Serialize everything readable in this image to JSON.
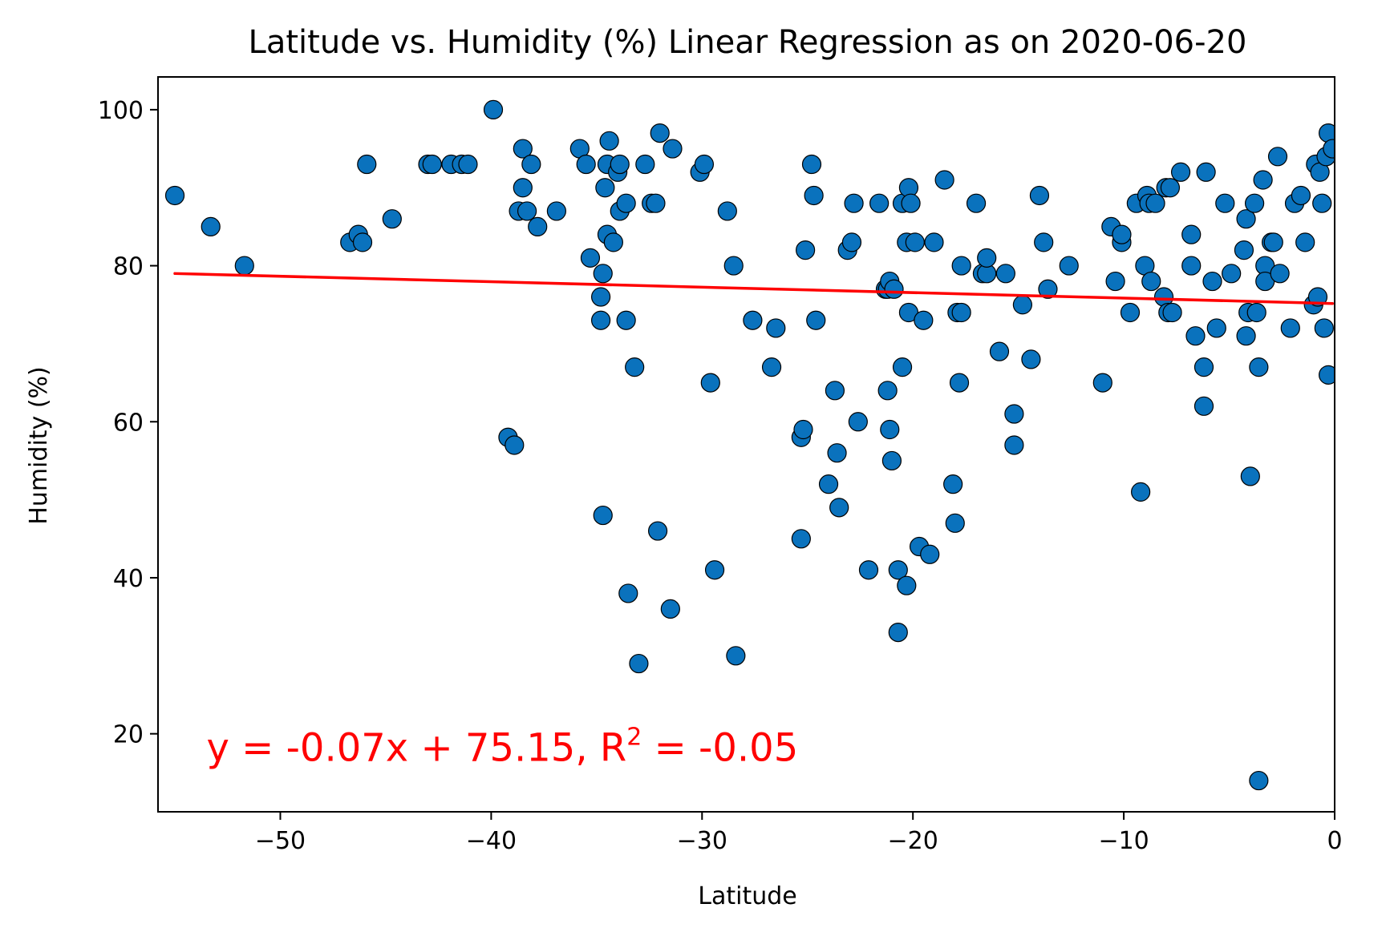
{
  "chart_data": {
    "type": "scatter",
    "title": "Latitude vs. Humidity (%) Linear Regression as on 2020-06-20",
    "xlabel": "Latitude",
    "ylabel": "Humidity (%)",
    "xlim": [
      -55.8,
      0
    ],
    "ylim": [
      10,
      104.2
    ],
    "xticks": [
      -50,
      -40,
      -30,
      -20,
      -10,
      0
    ],
    "xtick_labels": [
      "−50",
      "−40",
      "−30",
      "−20",
      "−10",
      "0"
    ],
    "yticks": [
      20,
      40,
      60,
      80,
      100
    ],
    "ytick_labels": [
      "20",
      "40",
      "60",
      "80",
      "100"
    ],
    "grid": false,
    "point_color": "#0a72bd",
    "point_edge_color": "#000000",
    "line_color": "#ff0000",
    "regression": {
      "slope": -0.07,
      "intercept": 75.15,
      "x_range": [
        -55,
        -0.1
      ]
    },
    "annotation": {
      "text_main": "y = -0.07x + 75.15, R",
      "superscript": "2",
      "text_end": " = -0.05",
      "color": "#ff0000",
      "x": -53.5,
      "y": 16.5
    },
    "points": [
      [
        -55.0,
        89
      ],
      [
        -53.3,
        85
      ],
      [
        -51.7,
        80
      ],
      [
        -46.7,
        83
      ],
      [
        -46.3,
        84
      ],
      [
        -46.1,
        83
      ],
      [
        -45.9,
        93
      ],
      [
        -44.7,
        86
      ],
      [
        -43.0,
        93
      ],
      [
        -42.8,
        93
      ],
      [
        -41.9,
        93
      ],
      [
        -41.4,
        93
      ],
      [
        -41.1,
        93
      ],
      [
        -39.9,
        100
      ],
      [
        -39.2,
        58
      ],
      [
        -38.9,
        57
      ],
      [
        -38.7,
        87
      ],
      [
        -38.5,
        95
      ],
      [
        -38.5,
        90
      ],
      [
        -38.3,
        87
      ],
      [
        -38.1,
        93
      ],
      [
        -37.8,
        85
      ],
      [
        -36.9,
        87
      ],
      [
        -35.8,
        95
      ],
      [
        -35.5,
        93
      ],
      [
        -35.3,
        81
      ],
      [
        -34.8,
        76
      ],
      [
        -34.8,
        73
      ],
      [
        -34.7,
        79
      ],
      [
        -34.7,
        48
      ],
      [
        -34.6,
        90
      ],
      [
        -34.5,
        93
      ],
      [
        -34.5,
        84
      ],
      [
        -34.4,
        96
      ],
      [
        -34.2,
        83
      ],
      [
        -34.0,
        92
      ],
      [
        -33.9,
        93
      ],
      [
        -33.9,
        87
      ],
      [
        -33.6,
        88
      ],
      [
        -33.6,
        73
      ],
      [
        -33.5,
        38
      ],
      [
        -33.2,
        67
      ],
      [
        -33.0,
        29
      ],
      [
        -32.7,
        93
      ],
      [
        -32.4,
        88
      ],
      [
        -32.2,
        88
      ],
      [
        -32.1,
        46
      ],
      [
        -32.0,
        97
      ],
      [
        -31.5,
        36
      ],
      [
        -31.4,
        95
      ],
      [
        -30.1,
        92
      ],
      [
        -29.9,
        93
      ],
      [
        -29.6,
        65
      ],
      [
        -29.4,
        41
      ],
      [
        -28.8,
        87
      ],
      [
        -28.5,
        80
      ],
      [
        -28.4,
        30
      ],
      [
        -27.6,
        73
      ],
      [
        -26.7,
        67
      ],
      [
        -26.5,
        72
      ],
      [
        -25.3,
        45
      ],
      [
        -25.3,
        58
      ],
      [
        -25.2,
        59
      ],
      [
        -25.1,
        82
      ],
      [
        -24.8,
        93
      ],
      [
        -24.7,
        89
      ],
      [
        -24.6,
        73
      ],
      [
        -24.0,
        52
      ],
      [
        -23.7,
        64
      ],
      [
        -23.6,
        56
      ],
      [
        -23.5,
        49
      ],
      [
        -23.1,
        82
      ],
      [
        -22.9,
        83
      ],
      [
        -22.8,
        88
      ],
      [
        -22.6,
        60
      ],
      [
        -22.1,
        41
      ],
      [
        -21.6,
        88
      ],
      [
        -21.3,
        77
      ],
      [
        -21.2,
        77
      ],
      [
        -21.2,
        64
      ],
      [
        -21.1,
        78
      ],
      [
        -21.1,
        59
      ],
      [
        -21.0,
        55
      ],
      [
        -20.9,
        77
      ],
      [
        -20.7,
        41
      ],
      [
        -20.7,
        33
      ],
      [
        -20.5,
        67
      ],
      [
        -20.5,
        88
      ],
      [
        -20.3,
        83
      ],
      [
        -20.2,
        90
      ],
      [
        -20.2,
        74
      ],
      [
        -20.3,
        39
      ],
      [
        -20.1,
        88
      ],
      [
        -19.9,
        83
      ],
      [
        -19.7,
        44
      ],
      [
        -19.5,
        73
      ],
      [
        -19.2,
        43
      ],
      [
        -19.0,
        83
      ],
      [
        -18.5,
        91
      ],
      [
        -18.1,
        52
      ],
      [
        -18.0,
        47
      ],
      [
        -17.9,
        74
      ],
      [
        -17.8,
        65
      ],
      [
        -17.7,
        80
      ],
      [
        -17.7,
        74
      ],
      [
        -17.0,
        88
      ],
      [
        -16.7,
        79
      ],
      [
        -16.5,
        79
      ],
      [
        -16.5,
        81
      ],
      [
        -15.9,
        69
      ],
      [
        -15.6,
        79
      ],
      [
        -15.2,
        61
      ],
      [
        -15.2,
        57
      ],
      [
        -14.8,
        75
      ],
      [
        -14.4,
        68
      ],
      [
        -14.0,
        89
      ],
      [
        -13.8,
        83
      ],
      [
        -13.6,
        77
      ],
      [
        -12.6,
        80
      ],
      [
        -11.0,
        65
      ],
      [
        -10.6,
        85
      ],
      [
        -10.4,
        78
      ],
      [
        -10.1,
        83
      ],
      [
        -10.1,
        84
      ],
      [
        -9.7,
        74
      ],
      [
        -9.4,
        88
      ],
      [
        -9.2,
        51
      ],
      [
        -9.0,
        80
      ],
      [
        -8.9,
        89
      ],
      [
        -8.8,
        88
      ],
      [
        -8.7,
        78
      ],
      [
        -8.5,
        88
      ],
      [
        -8.1,
        76
      ],
      [
        -8.0,
        90
      ],
      [
        -7.9,
        74
      ],
      [
        -7.8,
        90
      ],
      [
        -7.7,
        74
      ],
      [
        -7.3,
        92
      ],
      [
        -6.8,
        80
      ],
      [
        -6.8,
        84
      ],
      [
        -6.6,
        71
      ],
      [
        -6.2,
        67
      ],
      [
        -6.2,
        62
      ],
      [
        -6.1,
        92
      ],
      [
        -5.8,
        78
      ],
      [
        -5.6,
        72
      ],
      [
        -5.2,
        88
      ],
      [
        -4.9,
        79
      ],
      [
        -4.3,
        82
      ],
      [
        -4.2,
        86
      ],
      [
        -4.2,
        71
      ],
      [
        -4.1,
        74
      ],
      [
        -4.0,
        53
      ],
      [
        -3.8,
        88
      ],
      [
        -3.7,
        74
      ],
      [
        -3.6,
        67
      ],
      [
        -3.6,
        14
      ],
      [
        -3.4,
        91
      ],
      [
        -3.3,
        80
      ],
      [
        -3.3,
        78
      ],
      [
        -3.0,
        83
      ],
      [
        -2.9,
        83
      ],
      [
        -2.7,
        94
      ],
      [
        -2.6,
        79
      ],
      [
        -2.1,
        72
      ],
      [
        -1.9,
        88
      ],
      [
        -1.6,
        89
      ],
      [
        -1.4,
        83
      ],
      [
        -1.0,
        75
      ],
      [
        -0.9,
        93
      ],
      [
        -0.8,
        76
      ],
      [
        -0.7,
        92
      ],
      [
        -0.6,
        88
      ],
      [
        -0.5,
        72
      ],
      [
        -0.4,
        94
      ],
      [
        -0.3,
        66
      ],
      [
        -0.3,
        97
      ],
      [
        -0.1,
        95
      ]
    ]
  }
}
